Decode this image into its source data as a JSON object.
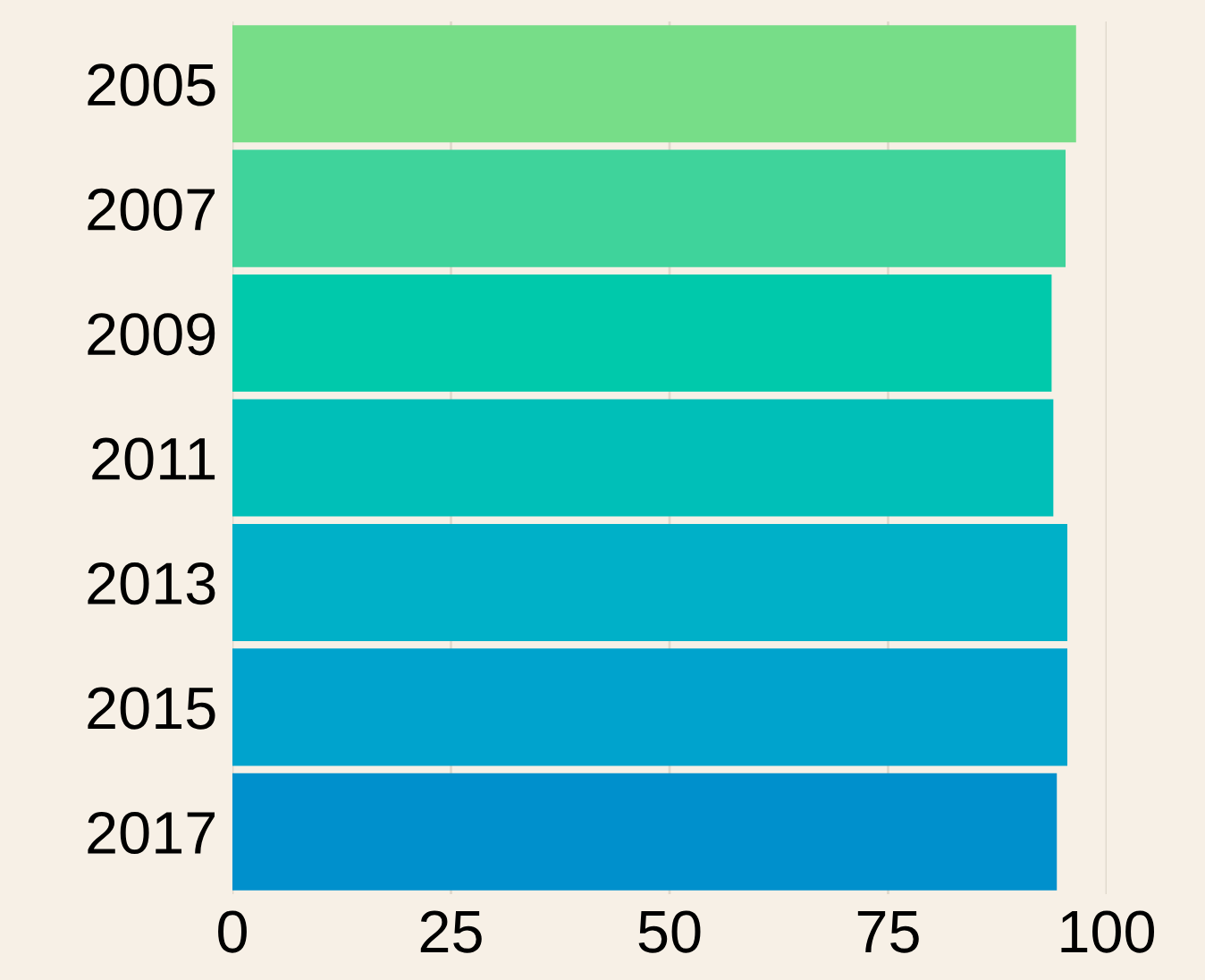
{
  "chart_data": {
    "type": "bar",
    "orientation": "horizontal",
    "categories": [
      "2005",
      "2007",
      "2009",
      "2011",
      "2013",
      "2015",
      "2017"
    ],
    "values": [
      96.5,
      95.3,
      93.7,
      93.9,
      95.5,
      95.5,
      94.3
    ],
    "colors": [
      "#77dd88",
      "#3fd39b",
      "#00c9ab",
      "#00bfb8",
      "#00b0c8",
      "#00a3cd",
      "#0090cc"
    ],
    "xlim": [
      0,
      100
    ],
    "xticks": [
      0,
      25,
      50,
      75,
      100
    ],
    "grid": "x"
  }
}
